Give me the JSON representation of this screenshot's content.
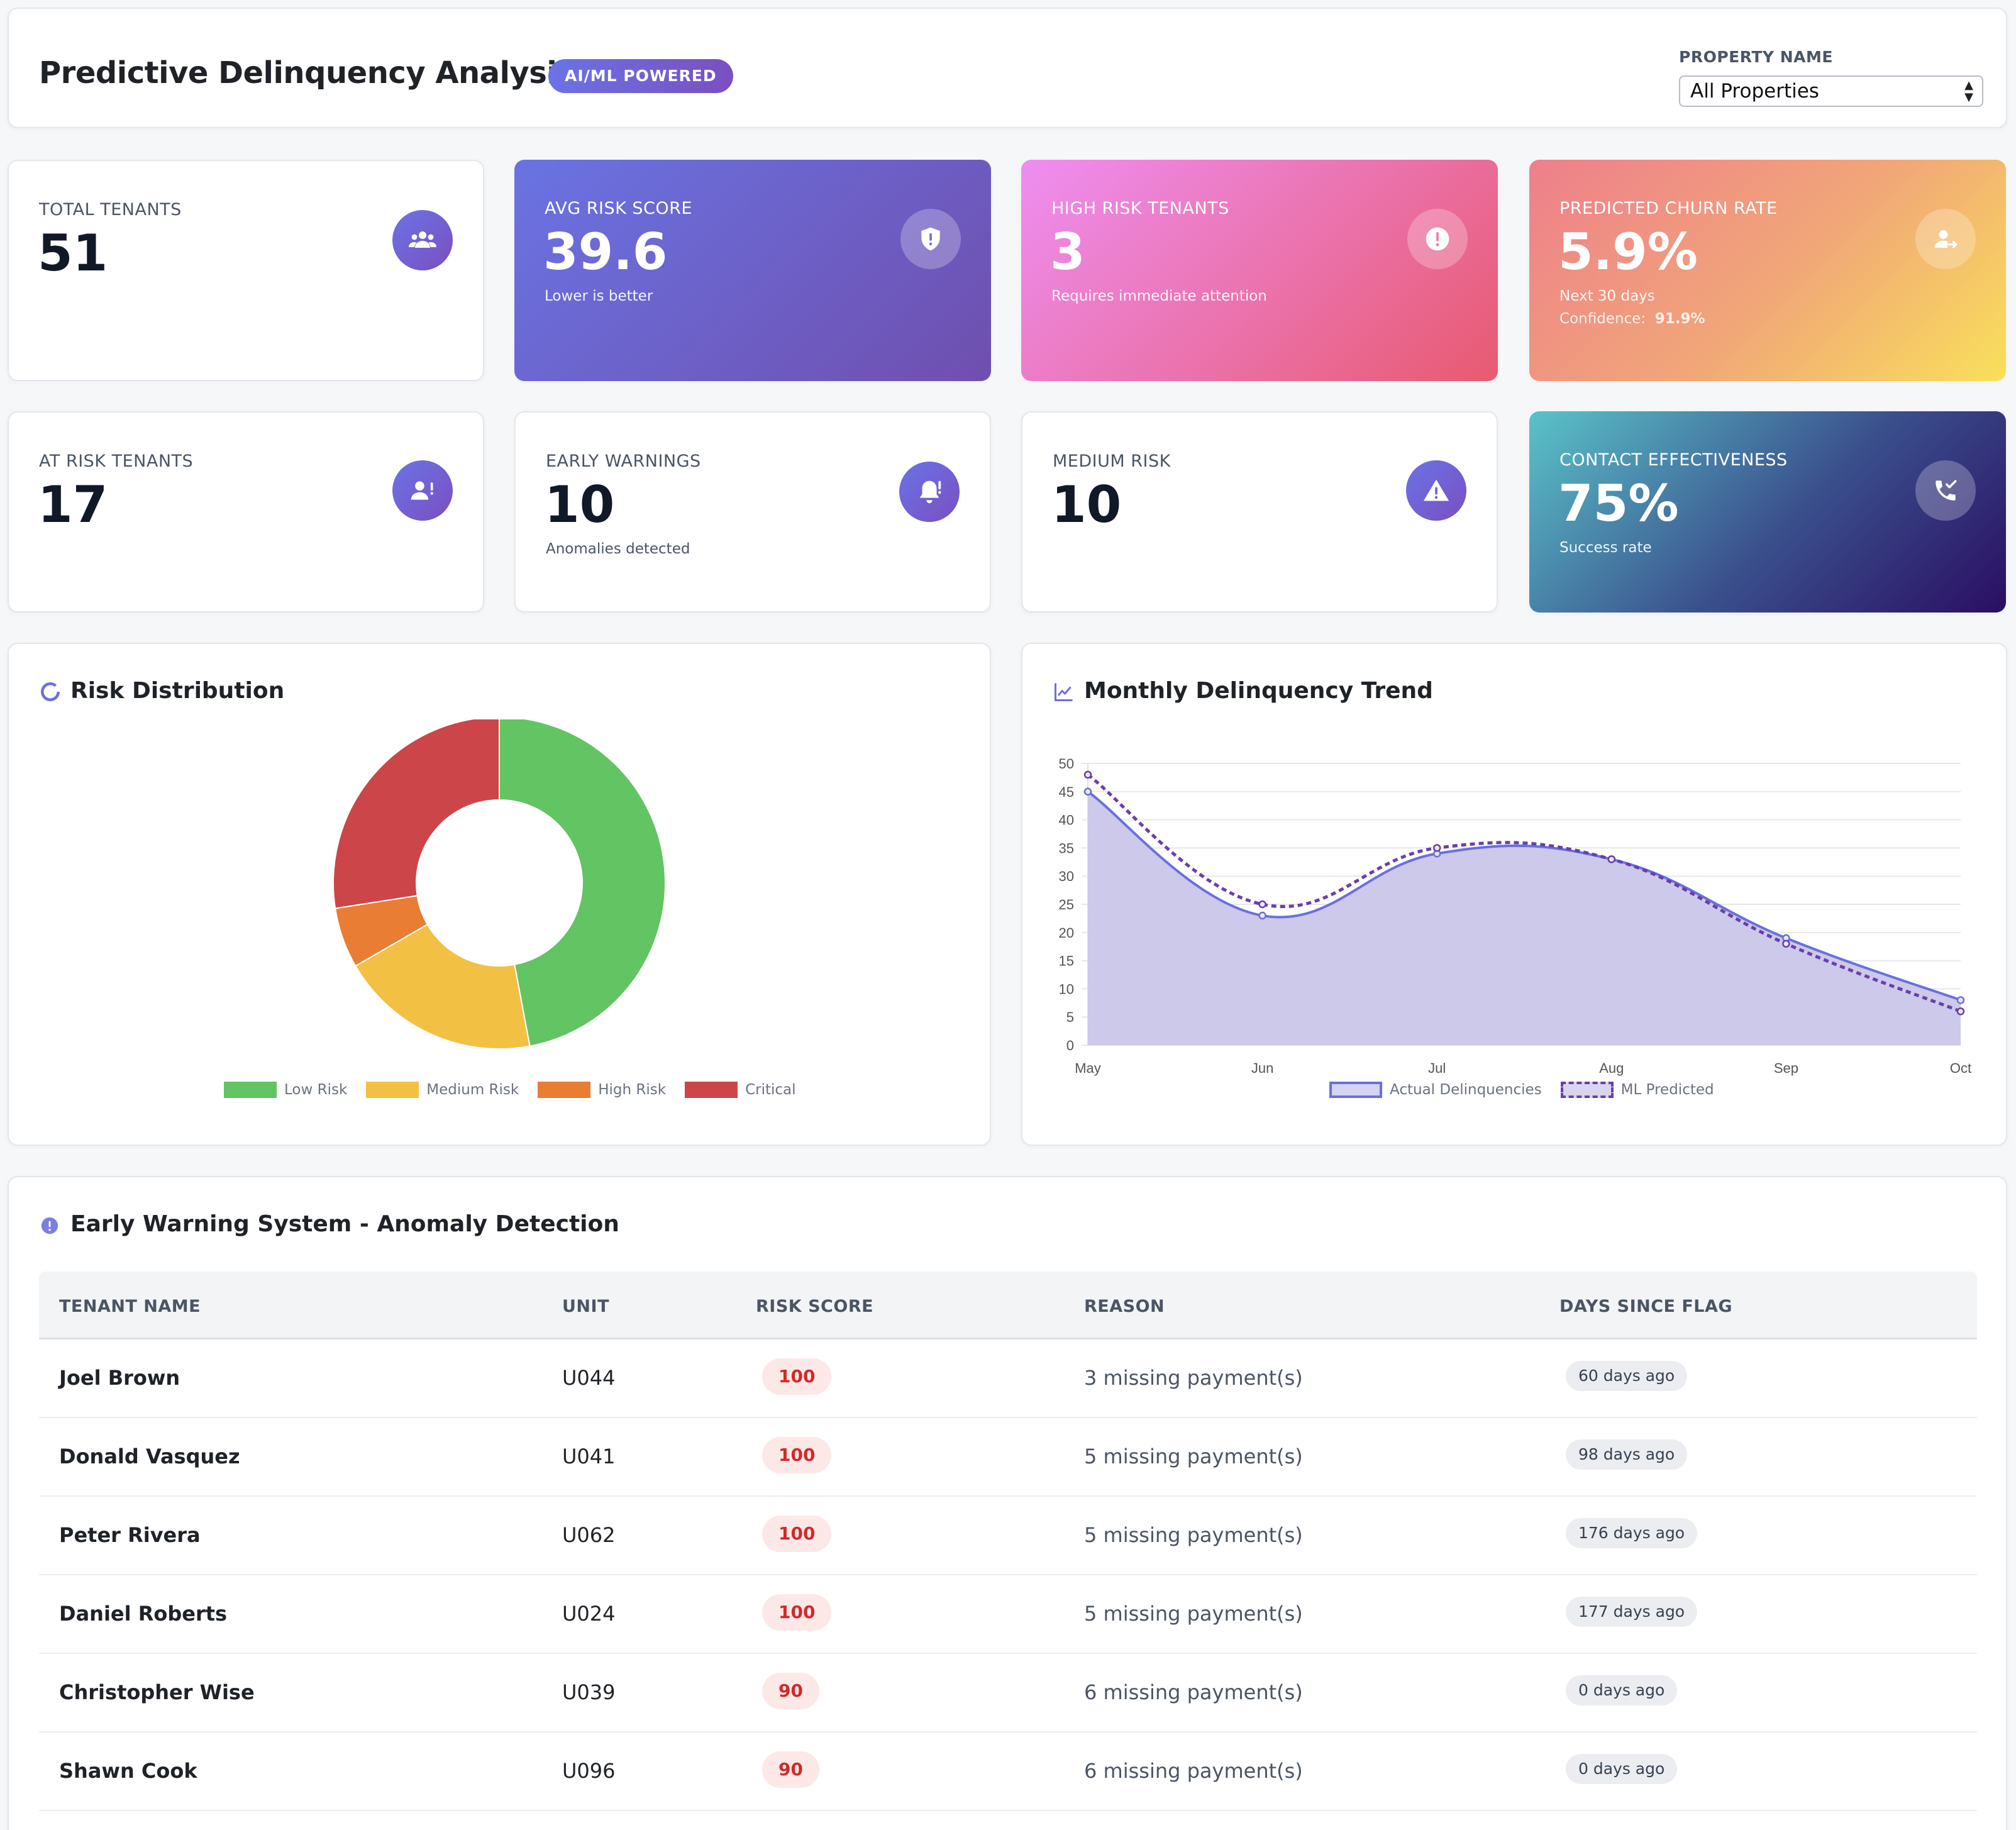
{
  "header": {
    "title": "Predictive Delinquency Analysis",
    "badge": "AI/ML POWERED",
    "property_label": "PROPERTY NAME",
    "property_selected": "All Properties"
  },
  "kpis": {
    "total_tenants": {
      "label": "TOTAL TENANTS",
      "value": "51",
      "icon": "users-icon"
    },
    "avg_risk": {
      "label": "AVG RISK SCORE",
      "value": "39.6",
      "sub": "Lower is better",
      "icon": "shield-icon"
    },
    "high_risk": {
      "label": "HIGH RISK TENANTS",
      "value": "3",
      "sub": "Requires immediate attention",
      "icon": "alert-circle-icon"
    },
    "churn": {
      "label": "PREDICTED CHURN RATE",
      "value": "5.9%",
      "sub": "Next 30 days",
      "confidence_label": "Confidence:",
      "confidence_value": "91.9%",
      "icon": "user-leave-icon"
    },
    "at_risk": {
      "label": "AT RISK TENANTS",
      "value": "17",
      "icon": "user-warning-icon"
    },
    "early_warnings": {
      "label": "EARLY WARNINGS",
      "value": "10",
      "sub": "Anomalies detected",
      "icon": "bell-alert-icon"
    },
    "medium_risk": {
      "label": "MEDIUM RISK",
      "value": "10",
      "icon": "warning-triangle-icon"
    },
    "contact": {
      "label": "CONTACT EFFECTIVENESS",
      "value": "75%",
      "sub": "Success rate",
      "icon": "phone-check-icon"
    }
  },
  "risk_distribution": {
    "title": "Risk Distribution",
    "icon": "donut-icon",
    "colors": [
      "#62c462",
      "#f2c144",
      "#e87d33",
      "#cc4548"
    ]
  },
  "trend": {
    "title": "Monthly Delinquency Trend",
    "icon": "line-chart-icon",
    "colors": {
      "actual": "#6b6fde",
      "actual_fill": "#c9c6ea",
      "predicted": "#6a3fa8"
    }
  },
  "chart_data": [
    {
      "type": "pie",
      "variant": "doughnut",
      "categories": [
        "Low Risk",
        "Medium Risk",
        "High Risk",
        "Critical"
      ],
      "values": [
        24,
        10,
        3,
        14
      ],
      "legend": "bottom"
    },
    {
      "type": "line",
      "x": [
        "May",
        "Jun",
        "Jul",
        "Aug",
        "Sep",
        "Oct"
      ],
      "series": [
        {
          "name": "Actual Delinquencies",
          "values": [
            45,
            23,
            34,
            33,
            19,
            8
          ],
          "fill": true
        },
        {
          "name": "ML Predicted",
          "values": [
            48,
            25,
            35,
            33,
            18,
            6
          ],
          "dashed": true
        }
      ],
      "ylim": [
        0,
        50
      ],
      "yticks": [
        0,
        5,
        10,
        15,
        20,
        25,
        30,
        35,
        40,
        45,
        50
      ],
      "grid": true,
      "legend": "bottom"
    }
  ],
  "warnings": {
    "title": "Early Warning System - Anomaly Detection",
    "icon": "alert-circle-icon",
    "columns": [
      "TENANT NAME",
      "UNIT",
      "RISK SCORE",
      "REASON",
      "DAYS SINCE FLAG"
    ],
    "rows": [
      {
        "name": "Joel Brown",
        "unit": "U044",
        "score": "100",
        "reason": "3 missing payment(s)",
        "days": "60 days ago"
      },
      {
        "name": "Donald Vasquez",
        "unit": "U041",
        "score": "100",
        "reason": "5 missing payment(s)",
        "days": "98 days ago"
      },
      {
        "name": "Peter Rivera",
        "unit": "U062",
        "score": "100",
        "reason": "5 missing payment(s)",
        "days": "176 days ago"
      },
      {
        "name": "Daniel Roberts",
        "unit": "U024",
        "score": "100",
        "reason": "5 missing payment(s)",
        "days": "177 days ago"
      },
      {
        "name": "Christopher Wise",
        "unit": "U039",
        "score": "90",
        "reason": "6 missing payment(s)",
        "days": "0 days ago"
      },
      {
        "name": "Shawn Cook",
        "unit": "U096",
        "score": "90",
        "reason": "6 missing payment(s)",
        "days": "0 days ago"
      }
    ]
  }
}
